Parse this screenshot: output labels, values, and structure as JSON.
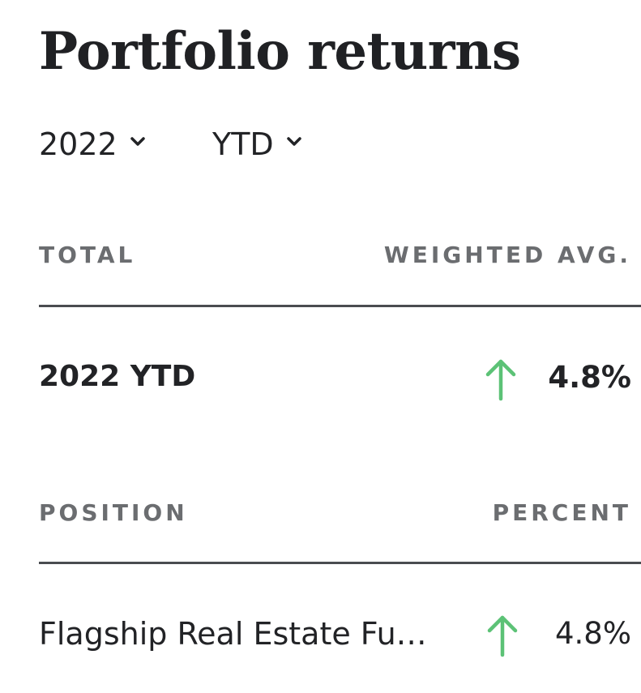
{
  "title": "Portfolio returns",
  "filters": {
    "year": "2022",
    "period": "YTD",
    "chevron_icon": "chevron-down-icon"
  },
  "summary": {
    "header_left": "TOTAL",
    "header_right": "WEIGHTED AVG.",
    "label": "2022 YTD",
    "value": "4.8%",
    "trend_icon": "arrow-up-icon"
  },
  "positions": {
    "header_left": "POSITION",
    "header_right": "PERCENT",
    "rows": [
      {
        "name": "Flagship Real Estate Fu…",
        "value": "4.8%",
        "trend_icon": "arrow-up-icon"
      }
    ]
  },
  "colors": {
    "positive": "#5cc276",
    "text": "#222326",
    "muted": "#6b6d70",
    "divider": "#4a4c50"
  }
}
